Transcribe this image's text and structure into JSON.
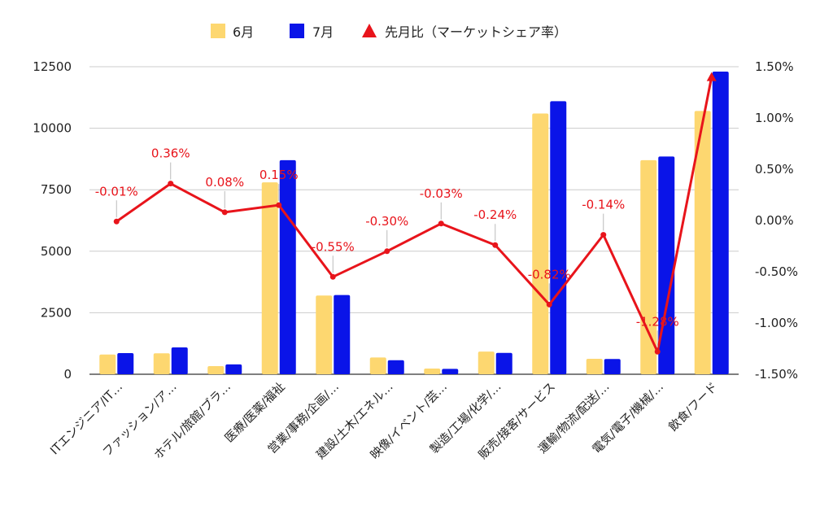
{
  "chart_data": {
    "type": "bar",
    "categories": [
      "ITエンジニア/IT…",
      "ファッション/ア…",
      "ホテル/旅館/ブラ…",
      "医療/医薬/福祉",
      "営業/事務/企画/…",
      "建設/土木/エネル…",
      "映像/イベント/芸…",
      "製造/工場/化学/…",
      "販売/接客/サービス",
      "運輸/物流/配送/…",
      "電気/電子/機械/…",
      "飲食/フード"
    ],
    "series": [
      {
        "name": "6月",
        "kind": "bar",
        "axis": "left",
        "color": "#fdd770",
        "values": [
          800,
          850,
          330,
          7800,
          3200,
          680,
          230,
          920,
          10600,
          630,
          8700,
          10700
        ]
      },
      {
        "name": "7月",
        "kind": "bar",
        "axis": "left",
        "color": "#0a14e8",
        "values": [
          860,
          1090,
          400,
          8700,
          3220,
          570,
          220,
          870,
          11100,
          620,
          8850,
          12300
        ]
      },
      {
        "name": "先月比（マーケットシェア率）",
        "kind": "line",
        "axis": "right",
        "color": "#e8141b",
        "marker": "triangle",
        "values": [
          -0.01,
          0.36,
          0.08,
          0.15,
          -0.55,
          -0.3,
          -0.03,
          -0.24,
          -0.82,
          -0.14,
          -1.28,
          1.4
        ],
        "labels": [
          "-0.01%",
          "0.36%",
          "0.08%",
          "0.15%",
          "-0.55%",
          "-0.30%",
          "-0.03%",
          "-0.24%",
          "-0.82%",
          "-0.14%",
          "-1.28%",
          ""
        ]
      }
    ],
    "y_left": {
      "min": 0,
      "max": 12500,
      "ticks": [
        0,
        2500,
        5000,
        7500,
        10000,
        12500
      ],
      "tick_labels": [
        "0",
        "2500",
        "5000",
        "7500",
        "10000",
        "12500"
      ]
    },
    "y_right": {
      "min": -1.5,
      "max": 1.5,
      "ticks": [
        -1.5,
        -1.0,
        -0.5,
        0,
        0.5,
        1.0,
        1.5
      ],
      "tick_labels": [
        "-1.50%",
        "-1.00%",
        "-0.50%",
        "0.00%",
        "0.50%",
        "1.00%",
        "1.50%"
      ]
    },
    "grid": true,
    "legend_position": "top"
  }
}
